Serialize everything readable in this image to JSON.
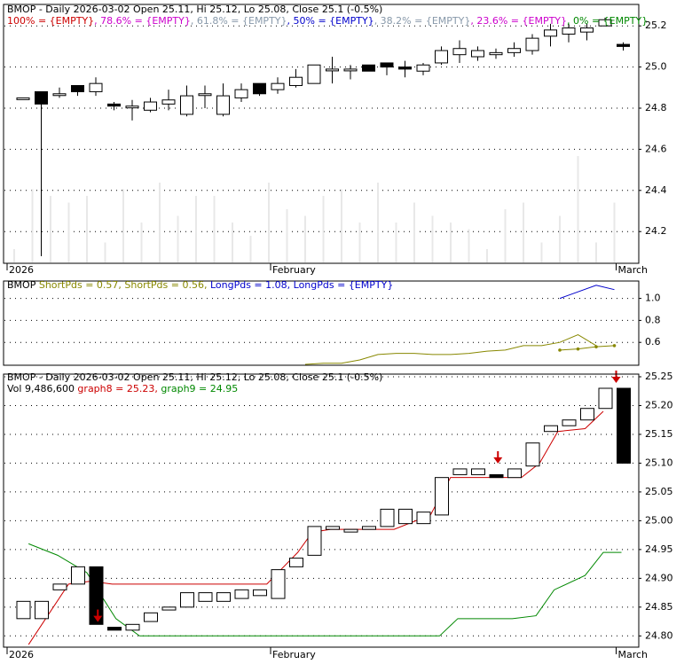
{
  "chart_data": [
    {
      "type": "candlestick",
      "title": "BMOP - Daily 2026-03-02 Open 25.11, Hi 25.12, Lo 25.08, Close 25.1 (-0.5%)",
      "fib_legend": [
        {
          "label": "100% = {EMPTY}",
          "color": "#cc0000"
        },
        {
          "label": "78.6% = {EMPTY}",
          "color": "#cc00cc"
        },
        {
          "label": "61.8% = {EMPTY}",
          "color": "#8899aa"
        },
        {
          "label": "50% = {EMPTY}",
          "color": "#0000cc"
        },
        {
          "label": "38.2% = {EMPTY}",
          "color": "#8899aa"
        },
        {
          "label": "23.6% = {EMPTY}",
          "color": "#cc00cc"
        },
        {
          "label": "0% = {EMPTY}",
          "color": "#008800"
        }
      ],
      "ylim": [
        24.05,
        25.3
      ],
      "yticks": [
        "25.2",
        "25.0",
        "24.8",
        "24.6",
        "24.4",
        "24.2"
      ],
      "x_labels": [
        {
          "i": 0,
          "label": "2026"
        },
        {
          "i": 14,
          "label": "February"
        },
        {
          "i": 33,
          "label": "March"
        }
      ],
      "candles": [
        {
          "o": 24.85,
          "h": 24.85,
          "l": 24.85,
          "c": 24.85
        },
        {
          "o": 24.88,
          "h": 24.88,
          "l": 24.08,
          "c": 24.82
        },
        {
          "o": 24.87,
          "h": 24.9,
          "l": 24.85,
          "c": 24.87
        },
        {
          "o": 24.91,
          "h": 24.91,
          "l": 24.86,
          "c": 24.88
        },
        {
          "o": 24.88,
          "h": 24.95,
          "l": 24.86,
          "c": 24.92
        },
        {
          "o": 24.82,
          "h": 24.83,
          "l": 24.79,
          "c": 24.81
        },
        {
          "o": 24.81,
          "h": 24.84,
          "l": 24.74,
          "c": 24.81
        },
        {
          "o": 24.79,
          "h": 24.85,
          "l": 24.78,
          "c": 24.83
        },
        {
          "o": 24.82,
          "h": 24.89,
          "l": 24.79,
          "c": 24.84
        },
        {
          "o": 24.77,
          "h": 24.91,
          "l": 24.76,
          "c": 24.86
        },
        {
          "o": 24.87,
          "h": 24.91,
          "l": 24.8,
          "c": 24.87
        },
        {
          "o": 24.77,
          "h": 24.92,
          "l": 24.76,
          "c": 24.86
        },
        {
          "o": 24.85,
          "h": 24.92,
          "l": 24.83,
          "c": 24.89
        },
        {
          "o": 24.92,
          "h": 24.92,
          "l": 24.86,
          "c": 24.87
        },
        {
          "o": 24.89,
          "h": 24.95,
          "l": 24.87,
          "c": 24.92
        },
        {
          "o": 24.91,
          "h": 24.99,
          "l": 24.9,
          "c": 24.95
        },
        {
          "o": 24.92,
          "h": 25.01,
          "l": 24.92,
          "c": 25.01
        },
        {
          "o": 24.99,
          "h": 25.05,
          "l": 24.92,
          "c": 24.99
        },
        {
          "o": 24.99,
          "h": 25.01,
          "l": 24.94,
          "c": 24.99
        },
        {
          "o": 25.01,
          "h": 25.01,
          "l": 24.98,
          "c": 24.98
        },
        {
          "o": 25.02,
          "h": 25.02,
          "l": 24.96,
          "c": 25.0
        },
        {
          "o": 25.0,
          "h": 25.03,
          "l": 24.95,
          "c": 24.99
        },
        {
          "o": 24.98,
          "h": 25.02,
          "l": 24.96,
          "c": 25.01
        },
        {
          "o": 25.02,
          "h": 25.1,
          "l": 25.01,
          "c": 25.08
        },
        {
          "o": 25.06,
          "h": 25.13,
          "l": 25.02,
          "c": 25.09
        },
        {
          "o": 25.05,
          "h": 25.1,
          "l": 25.03,
          "c": 25.08
        },
        {
          "o": 25.06,
          "h": 25.09,
          "l": 25.04,
          "c": 25.07
        },
        {
          "o": 25.07,
          "h": 25.12,
          "l": 25.05,
          "c": 25.09
        },
        {
          "o": 25.08,
          "h": 25.16,
          "l": 25.06,
          "c": 25.14
        },
        {
          "o": 25.15,
          "h": 25.21,
          "l": 25.1,
          "c": 25.18
        },
        {
          "o": 25.16,
          "h": 25.21,
          "l": 25.12,
          "c": 25.19
        },
        {
          "o": 25.17,
          "h": 25.21,
          "l": 25.13,
          "c": 25.19
        },
        {
          "o": 25.2,
          "h": 25.24,
          "l": 25.2,
          "c": 25.23
        },
        {
          "o": 25.11,
          "h": 25.12,
          "l": 25.08,
          "c": 25.1
        }
      ],
      "volume_rel": [
        0.1,
        0.55,
        0.5,
        0.45,
        0.5,
        0.15,
        0.55,
        0.3,
        0.6,
        0.35,
        0.5,
        0.5,
        0.3,
        0.2,
        0.6,
        0.4,
        0.35,
        0.5,
        0.55,
        0.3,
        0.6,
        0.3,
        0.45,
        0.35,
        0.3,
        0.25,
        0.1,
        0.4,
        0.45,
        0.15,
        0.35,
        0.8,
        0.15,
        0.45
      ]
    },
    {
      "type": "line",
      "legend": [
        {
          "label": "BMOP",
          "color": "#000000"
        },
        {
          "label": "ShortPds = 0.57,",
          "color": "#888800"
        },
        {
          "label": "ShortPds = 0.56,",
          "color": "#888800"
        },
        {
          "label": "LongPds = 1.08,",
          "color": "#0000cc"
        },
        {
          "label": "LongPds = {EMPTY}",
          "color": "#0000cc"
        }
      ],
      "ylim": [
        0.4,
        1.15
      ],
      "yticks": [
        "1.0",
        "0.8",
        "0.6"
      ],
      "series": [
        {
          "color": "#888800",
          "start": 16,
          "values": [
            0.4,
            0.41,
            0.41,
            0.44,
            0.49,
            0.5,
            0.5,
            0.49,
            0.49,
            0.5,
            0.52,
            0.53,
            0.57,
            0.57,
            0.6,
            0.67,
            0.57
          ]
        },
        {
          "color": "#888800",
          "start": 30,
          "values": [
            0.53,
            0.54,
            0.56,
            0.57
          ],
          "dots": true
        },
        {
          "color": "#0000cc",
          "start": 30,
          "values": [
            1.0,
            1.06,
            1.12,
            1.08
          ]
        }
      ]
    },
    {
      "type": "candlestick",
      "title": "BMOP - Daily 2026-03-02 Open 25.11, Hi 25.12, Lo 25.08, Close 25.1 (-0.5%)",
      "sub_legend": [
        {
          "label": "Vol 9,486,600",
          "color": "#000000"
        },
        {
          "label": "graph8 = 25.23,",
          "color": "#cc0000"
        },
        {
          "label": "graph9 = 24.95",
          "color": "#008800"
        }
      ],
      "ylim": [
        24.782,
        25.25
      ],
      "yticks": [
        "25.25",
        "25.20",
        "25.15",
        "25.10",
        "25.05",
        "25.00",
        "24.95",
        "24.90",
        "24.85",
        "24.80"
      ],
      "x_labels": [
        {
          "i": 0,
          "label": "2026"
        },
        {
          "i": 14,
          "label": "February"
        },
        {
          "i": 33,
          "label": "March"
        }
      ],
      "bodies": [
        [
          24.86,
          24.83,
          0
        ],
        [
          24.86,
          24.83,
          0
        ],
        [
          24.89,
          24.88,
          0
        ],
        [
          24.92,
          24.89,
          0
        ],
        [
          24.92,
          24.82,
          1
        ],
        [
          24.815,
          24.81,
          1
        ],
        [
          24.82,
          24.81,
          0
        ],
        [
          24.84,
          24.825,
          0
        ],
        [
          24.85,
          24.845,
          0
        ],
        [
          24.875,
          24.85,
          0
        ],
        [
          24.875,
          24.86,
          0
        ],
        [
          24.875,
          24.86,
          0
        ],
        [
          24.88,
          24.865,
          0
        ],
        [
          24.88,
          24.87,
          0
        ],
        [
          24.915,
          24.865,
          0
        ],
        [
          24.935,
          24.92,
          0
        ],
        [
          24.99,
          24.94,
          0
        ],
        [
          24.99,
          24.985,
          0
        ],
        [
          24.985,
          24.985,
          0
        ],
        [
          24.99,
          24.985,
          0
        ],
        [
          25.02,
          24.99,
          0
        ],
        [
          25.02,
          24.995,
          0
        ],
        [
          25.015,
          24.995,
          0
        ],
        [
          25.075,
          25.01,
          0
        ],
        [
          25.09,
          25.08,
          0
        ],
        [
          25.09,
          25.08,
          0
        ],
        [
          25.08,
          25.075,
          1
        ],
        [
          25.09,
          25.075,
          0
        ],
        [
          25.135,
          25.095,
          0
        ],
        [
          25.165,
          25.155,
          0
        ],
        [
          25.175,
          25.165,
          0
        ],
        [
          25.195,
          25.175,
          0
        ],
        [
          25.23,
          25.195,
          0
        ],
        [
          25.23,
          25.1,
          1
        ]
      ],
      "lines": [
        {
          "color": "#cc0000",
          "name": "graph8",
          "points": [
            [
              0.4,
              24.785
            ],
            [
              2.6,
              24.89
            ],
            [
              3.8,
              24.895
            ],
            [
              5,
              24.89
            ],
            [
              13.5,
              24.89
            ],
            [
              15.2,
              24.945
            ],
            [
              16,
              24.98
            ],
            [
              17,
              24.985
            ],
            [
              20.5,
              24.985
            ],
            [
              22.5,
              25.01
            ],
            [
              23.6,
              25.075
            ],
            [
              27.5,
              25.075
            ],
            [
              28.5,
              25.1
            ],
            [
              29.5,
              25.155
            ],
            [
              31,
              25.16
            ],
            [
              32,
              25.19
            ]
          ]
        },
        {
          "color": "#008800",
          "name": "graph9",
          "points": [
            [
              0.4,
              24.96
            ],
            [
              2,
              24.94
            ],
            [
              3.6,
              24.91
            ],
            [
              4.6,
              24.86
            ],
            [
              5.2,
              24.83
            ],
            [
              6.5,
              24.8
            ],
            [
              23,
              24.8
            ],
            [
              24,
              24.83
            ],
            [
              27,
              24.83
            ],
            [
              28.3,
              24.835
            ],
            [
              29.3,
              24.88
            ],
            [
              31,
              24.905
            ],
            [
              32,
              24.945
            ],
            [
              33,
              24.945
            ]
          ]
        }
      ],
      "arrows": [
        4.5,
        26.5,
        33
      ]
    }
  ]
}
